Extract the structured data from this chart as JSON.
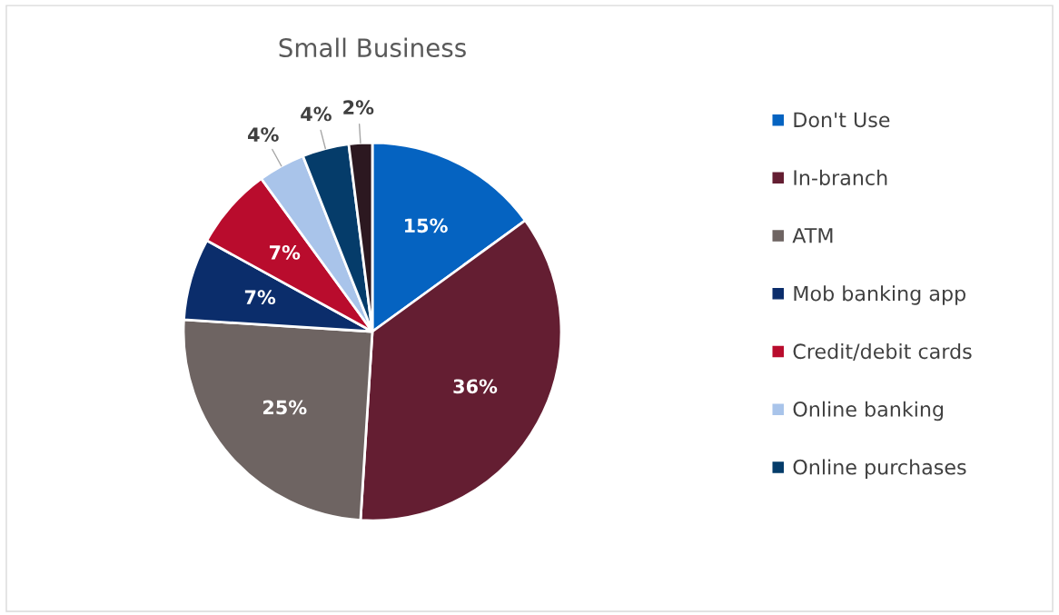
{
  "chart_data": {
    "type": "pie",
    "title": "Small Business",
    "categories": [
      "Don't Use",
      "In-branch",
      "ATM",
      "Mob banking app",
      "Credit/debit cards",
      "Online banking",
      "Online purchases",
      null
    ],
    "values": [
      15,
      36,
      25,
      7,
      7,
      4,
      4,
      2
    ],
    "colors": [
      "#0563c1",
      "#641e32",
      "#6e6462",
      "#0b2d6b",
      "#b90c2d",
      "#a9c4ea",
      "#053c6a",
      "#2c1820"
    ],
    "value_labels": [
      "15%",
      "36%",
      "25%",
      "7%",
      "7%",
      "4%",
      "4%",
      "2%"
    ],
    "legend": "right"
  }
}
